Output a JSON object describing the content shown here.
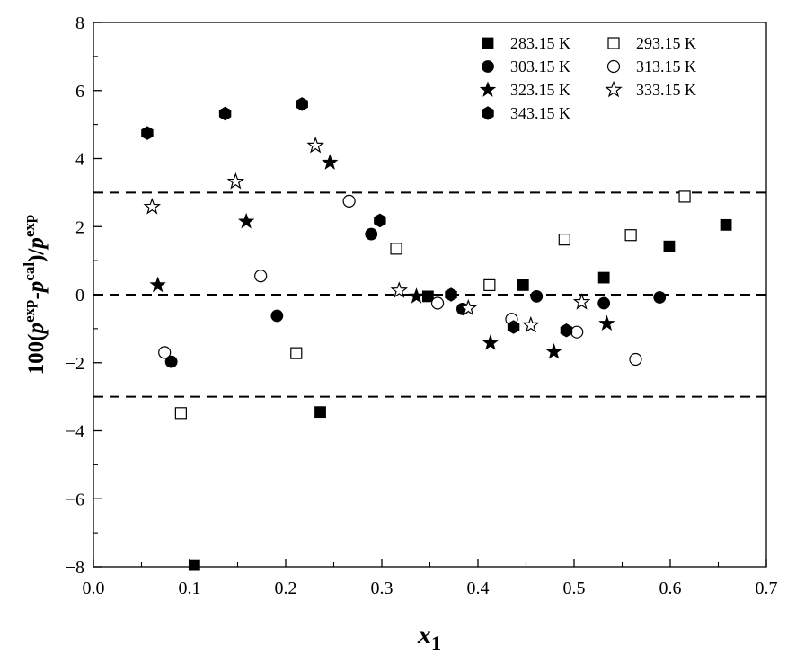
{
  "chart_data": {
    "type": "scatter",
    "xlabel": "x",
    "xlabel_sub": "1",
    "ylabel_parts": {
      "pre": "100(",
      "p1": "p",
      "sup1": "exp",
      "dash": "-",
      "p2": "p",
      "sup2": "cal",
      "slash": ")/",
      "p3": "p",
      "sup3": "exp"
    },
    "xlim": [
      0.0,
      0.7
    ],
    "ylim": [
      -8,
      8
    ],
    "xticks": [
      "0.0",
      "0.1",
      "0.2",
      "0.3",
      "0.4",
      "0.5",
      "0.6",
      "0.7"
    ],
    "yticks": [
      "−8",
      "−6",
      "−4",
      "−2",
      "0",
      "2",
      "4",
      "6",
      "8"
    ],
    "reference_lines": [
      3,
      0,
      -3
    ],
    "legend_position": "top-right",
    "series": [
      {
        "name": "283.15 K",
        "marker": "square-filled",
        "x": [
          0.105,
          0.236,
          0.348,
          0.447,
          0.531,
          0.599,
          0.658
        ],
        "y": [
          -7.95,
          -3.45,
          -0.05,
          0.28,
          0.5,
          1.42,
          2.05
        ]
      },
      {
        "name": "293.15 K",
        "marker": "square-open",
        "x": [
          0.091,
          0.211,
          0.315,
          0.412,
          0.49,
          0.559,
          0.615
        ],
        "y": [
          -3.48,
          -1.72,
          1.35,
          0.28,
          1.62,
          1.75,
          2.88
        ]
      },
      {
        "name": "303.15 K",
        "marker": "circle-filled",
        "x": [
          0.081,
          0.191,
          0.289,
          0.384,
          0.461,
          0.531,
          0.589
        ],
        "y": [
          -1.97,
          -0.62,
          1.78,
          -0.42,
          -0.05,
          -0.25,
          -0.08
        ]
      },
      {
        "name": "313.15 K",
        "marker": "circle-open",
        "x": [
          0.074,
          0.174,
          0.266,
          0.358,
          0.435,
          0.503,
          0.564
        ],
        "y": [
          -1.7,
          0.55,
          2.75,
          -0.25,
          -0.72,
          -1.1,
          -1.9
        ]
      },
      {
        "name": "323.15 K",
        "marker": "star-filled",
        "x": [
          0.067,
          0.159,
          0.246,
          0.336,
          0.413,
          0.479,
          0.534
        ],
        "y": [
          0.28,
          2.15,
          3.88,
          -0.05,
          -1.42,
          -1.68,
          -0.85
        ]
      },
      {
        "name": "333.15 K",
        "marker": "star-open",
        "x": [
          0.061,
          0.148,
          0.231,
          0.318,
          0.39,
          0.455,
          0.508
        ],
        "y": [
          2.58,
          3.32,
          4.38,
          0.12,
          -0.4,
          -0.9,
          -0.22
        ]
      },
      {
        "name": "343.15 K",
        "marker": "hexagon-filled",
        "x": [
          0.056,
          0.137,
          0.217,
          0.298,
          0.372,
          0.437,
          0.492
        ],
        "y": [
          4.75,
          5.32,
          5.6,
          2.18,
          0.0,
          -0.95,
          -1.05
        ]
      }
    ]
  }
}
